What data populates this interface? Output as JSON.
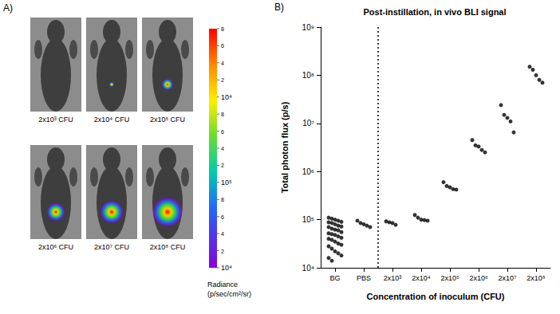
{
  "panel_labels": [
    "A)",
    "B)"
  ],
  "panel_a": {
    "images": [
      "2x10³ CFU",
      "2x10⁴ CFU",
      "2x10⁵ CFU",
      "2x10⁶ CFU",
      "2x10⁷ CFU",
      "2x10⁸ CFU"
    ],
    "colorbar_labels": [
      "8",
      "6",
      "4",
      "2",
      "10⁴",
      "8",
      "6",
      "4",
      "2",
      "10⁵",
      "8",
      "6",
      "4",
      "2",
      "10⁴"
    ],
    "colorbar_title": [
      "Radiance",
      "(p/sec/cm²/sr)"
    ]
  },
  "chart_data": {
    "type": "scatter",
    "title": "Post-instillation, in vivo BLI signal",
    "x_label": "Concentration of inoculum (CFU)",
    "y_label": "Total photon flux (p/s)",
    "categories": [
      "BG",
      "PBS",
      "2x10³",
      "2x10⁴",
      "2x10⁵",
      "2x10⁶",
      "2x10⁷",
      "2x10⁸"
    ],
    "values": [
      [
        110000,
        105000,
        100000,
        95000,
        90000,
        88000,
        85000,
        80000,
        75000,
        72000,
        70000,
        65000,
        62000,
        60000,
        55000,
        52000,
        50000,
        48000,
        45000,
        42000,
        40000,
        38000,
        35000,
        32000,
        30000,
        28000,
        25000,
        22000,
        20000,
        18000,
        16000,
        14000
      ],
      [
        95000,
        85000,
        80000,
        75000,
        70000
      ],
      [
        92000,
        88000,
        85000,
        78000
      ],
      [
        125000,
        110000,
        100000,
        98000,
        95000
      ],
      [
        600000,
        500000,
        470000,
        430000,
        420000
      ],
      [
        4500000,
        3500000,
        3300000,
        2800000,
        2500000
      ],
      [
        24000000,
        15000000,
        13000000,
        11000000,
        6500000
      ],
      [
        150000000,
        130000000,
        100000000,
        80000000,
        70000000
      ]
    ],
    "color": "#000000",
    "marker": "circle",
    "log": "y",
    "grid": false,
    "ylim": [
      10000,
      1000000000
    ],
    "yticks": [
      {
        "value": 10000,
        "label": "10⁴"
      },
      {
        "value": 100000,
        "label": "10⁵"
      },
      {
        "value": 1000000,
        "label": "10⁶"
      },
      {
        "value": 10000000,
        "label": "10⁷"
      },
      {
        "value": 100000000,
        "label": "10⁸"
      },
      {
        "value": 1000000000,
        "label": "10⁹"
      }
    ]
  }
}
